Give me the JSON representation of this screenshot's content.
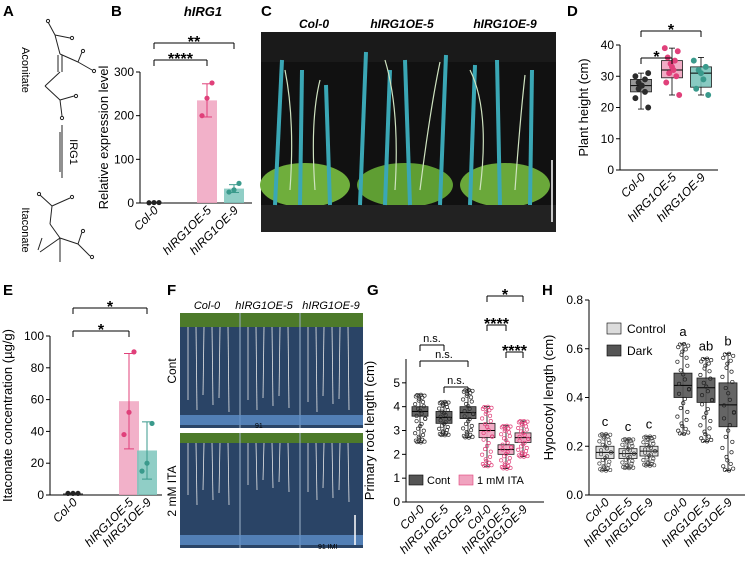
{
  "panels": {
    "A": {
      "letter": "A",
      "top_compound": "Aconitate",
      "enzyme": "IRG1",
      "bottom_compound": "Itaconate"
    },
    "B": {
      "letter": "B",
      "title": "hIRG1"
    },
    "C": {
      "letter": "C",
      "labels": [
        "Col-0",
        "hIRG1OE-5",
        "hIRG1OE-9"
      ]
    },
    "D": {
      "letter": "D"
    },
    "E": {
      "letter": "E"
    },
    "F": {
      "letter": "F",
      "column_labels": [
        "Col-0",
        "hIRG1OE-5",
        "hIRG1OE-9"
      ],
      "row_labels": [
        "Cont",
        "2 mM ITA"
      ],
      "plate_marks": [
        "91",
        "91 IMI"
      ]
    },
    "G": {
      "letter": "G",
      "legend": [
        "Cont",
        "1 mM ITA"
      ]
    },
    "H": {
      "letter": "H",
      "legend": [
        "Control",
        "Dark"
      ]
    }
  },
  "colors": {
    "pink": "#f0a3bf",
    "pink_dark": "#e0407a",
    "teal": "#7dc5bc",
    "teal_dark": "#3a9a8c",
    "grey": "#8c8c8c",
    "dark": "#2b2b2b",
    "box_grey": "#555555"
  },
  "chart_data": [
    {
      "panel": "B",
      "type": "bar",
      "title": "hIRG1",
      "categories": [
        "Col-0",
        "hIRG1OE-5",
        "hIRG1OE-9"
      ],
      "values": [
        1,
        235,
        33
      ],
      "errors": [
        1,
        38,
        9
      ],
      "points": [
        [
          0.5,
          1,
          1
        ],
        [
          200,
          240,
          275
        ],
        [
          25,
          30,
          45
        ]
      ],
      "ylabel": "Relative expression level",
      "ylim": [
        0,
        300
      ],
      "yticks": [
        0,
        100,
        200,
        300
      ],
      "bar_colors": [
        "#222222",
        "#f0a3bf",
        "#7dc5bc"
      ],
      "point_colors": [
        "#222222",
        "#e0407a",
        "#3a9a8c"
      ],
      "significance": [
        {
          "pair": [
            0,
            1
          ],
          "label": "****"
        },
        {
          "pair": [
            0,
            2
          ],
          "label": "**"
        }
      ]
    },
    {
      "panel": "D",
      "type": "box",
      "categories": [
        "Col-0",
        "hIRG1OE-5",
        "hIRG1OE-9"
      ],
      "ylabel": "Plant height (cm)",
      "ylim": [
        0,
        40
      ],
      "yticks": [
        0,
        10,
        20,
        30,
        40
      ],
      "boxes": [
        {
          "min": 19.5,
          "q1": 25,
          "median": 27,
          "q3": 29,
          "max": 31
        },
        {
          "min": 24,
          "q1": 29.5,
          "median": 32,
          "q3": 35,
          "max": 39
        },
        {
          "min": 24,
          "q1": 26.5,
          "median": 31,
          "q3": 33,
          "max": 36
        }
      ],
      "points": [
        [
          20,
          23,
          25,
          26,
          27,
          27,
          28,
          29,
          30,
          31
        ],
        [
          24,
          28,
          30,
          31,
          32,
          33,
          34,
          35,
          36,
          38,
          39
        ],
        [
          24,
          26,
          29,
          31,
          32,
          33,
          35
        ]
      ],
      "box_colors": [
        "#8c8c8c",
        "#f0a3bf",
        "#7dc5bc"
      ],
      "point_colors": [
        "#2b2b2b",
        "#e0407a",
        "#3a9a8c"
      ],
      "significance": [
        {
          "pair": [
            0,
            1
          ],
          "label": "*"
        },
        {
          "pair": [
            0,
            2
          ],
          "label": "*"
        }
      ]
    },
    {
      "panel": "E",
      "type": "bar",
      "categories": [
        "Col-0",
        "hIRG1OE-5",
        "hIRG1OE-9"
      ],
      "values": [
        1,
        59,
        28
      ],
      "errors": [
        1,
        30,
        18
      ],
      "points": [
        [
          1,
          1,
          1
        ],
        [
          38,
          52,
          90
        ],
        [
          15,
          20,
          45
        ]
      ],
      "ylabel": "Itaconate concentration (µg/g)",
      "ylim": [
        0,
        100
      ],
      "yticks": [
        0,
        20,
        40,
        60,
        80,
        100
      ],
      "bar_colors": [
        "#222222",
        "#f0a3bf",
        "#7dc5bc"
      ],
      "point_colors": [
        "#222222",
        "#e0407a",
        "#3a9a8c"
      ],
      "significance": [
        {
          "pair": [
            0,
            1
          ],
          "label": "*"
        },
        {
          "pair": [
            0,
            2
          ],
          "label": "*"
        }
      ]
    },
    {
      "panel": "G",
      "type": "box",
      "categories": [
        "Col-0",
        "hIRG1OE-5",
        "hIRG1OE-9",
        "Col-0",
        "hIRG1OE-5",
        "hIRG1OE-9"
      ],
      "ylabel": "Primary root length (cm)",
      "ylim": [
        0,
        6
      ],
      "yticks": [
        0,
        1,
        2,
        3,
        4,
        5
      ],
      "boxes": [
        {
          "min": 2.5,
          "q1": 3.6,
          "median": 3.8,
          "q3": 4.0,
          "max": 4.5
        },
        {
          "min": 2.8,
          "q1": 3.3,
          "median": 3.55,
          "q3": 3.8,
          "max": 4.2
        },
        {
          "min": 2.7,
          "q1": 3.5,
          "median": 3.75,
          "q3": 4.0,
          "max": 4.7
        },
        {
          "min": 1.5,
          "q1": 2.7,
          "median": 3.0,
          "q3": 3.3,
          "max": 4.0
        },
        {
          "min": 1.4,
          "q1": 2.0,
          "median": 2.2,
          "q3": 2.4,
          "max": 3.2
        },
        {
          "min": 1.9,
          "q1": 2.5,
          "median": 2.7,
          "q3": 2.9,
          "max": 3.4
        }
      ],
      "box_colors": [
        "#555555",
        "#555555",
        "#555555",
        "#f0a3bf",
        "#f0a3bf",
        "#f0a3bf"
      ],
      "point_colors": [
        "#2b2b2b",
        "#2b2b2b",
        "#2b2b2b",
        "#e0407a",
        "#e0407a",
        "#e0407a"
      ],
      "significance": [
        {
          "pair": [
            0,
            1
          ],
          "label": "n.s."
        },
        {
          "pair": [
            0,
            2
          ],
          "label": "n.s."
        },
        {
          "pair": [
            1,
            2
          ],
          "label": "n.s."
        },
        {
          "pair": [
            3,
            5
          ],
          "label": "*"
        },
        {
          "pair": [
            3,
            4
          ],
          "label": "****"
        },
        {
          "pair": [
            4,
            5
          ],
          "label": "****"
        }
      ],
      "legend": [
        "Cont",
        "1 mM ITA"
      ]
    },
    {
      "panel": "H",
      "type": "box",
      "categories": [
        "Col-0",
        "hIRG1OE-5",
        "hIRG1OE-9",
        "Col-0",
        "hIRG1OE-5",
        "hIRG1OE-9"
      ],
      "ylabel": "Hypocotyl length (cm)",
      "ylim": [
        0,
        0.8
      ],
      "yticks": [
        0.0,
        0.2,
        0.4,
        0.6,
        0.8
      ],
      "boxes": [
        {
          "min": 0.1,
          "q1": 0.15,
          "median": 0.175,
          "q3": 0.2,
          "max": 0.25
        },
        {
          "min": 0.11,
          "q1": 0.15,
          "median": 0.17,
          "q3": 0.19,
          "max": 0.23
        },
        {
          "min": 0.12,
          "q1": 0.16,
          "median": 0.18,
          "q3": 0.2,
          "max": 0.24
        },
        {
          "min": 0.25,
          "q1": 0.4,
          "median": 0.45,
          "q3": 0.5,
          "max": 0.62
        },
        {
          "min": 0.22,
          "q1": 0.38,
          "median": 0.44,
          "q3": 0.48,
          "max": 0.56
        },
        {
          "min": 0.1,
          "q1": 0.28,
          "median": 0.37,
          "q3": 0.46,
          "max": 0.58
        }
      ],
      "box_colors": [
        "#dcdcdc",
        "#dcdcdc",
        "#dcdcdc",
        "#555555",
        "#555555",
        "#555555"
      ],
      "point_colors": [
        "#444444",
        "#444444",
        "#444444",
        "#222222",
        "#222222",
        "#222222"
      ],
      "group_letters": [
        "c",
        "c",
        "c",
        "a",
        "ab",
        "b"
      ],
      "legend": [
        "Control",
        "Dark"
      ]
    }
  ]
}
